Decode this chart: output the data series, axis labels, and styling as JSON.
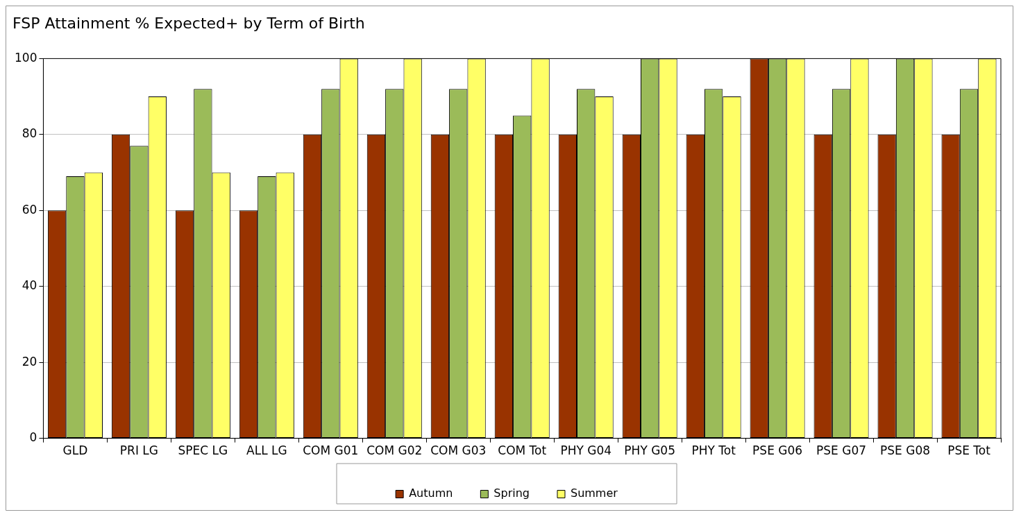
{
  "chart_data": {
    "type": "bar",
    "title": "FSP Attainment % Expected+ by Term of Birth",
    "categories": [
      "GLD",
      "PRI LG",
      "SPEC LG",
      "ALL LG",
      "COM G01",
      "COM G02",
      "COM G03",
      "COM Tot",
      "PHY G04",
      "PHY G05",
      "PHY Tot",
      "PSE G06",
      "PSE G07",
      "PSE G08",
      "PSE Tot"
    ],
    "series": [
      {
        "name": "Autumn",
        "color": "#993300",
        "values": [
          60,
          80,
          60,
          60,
          80,
          80,
          80,
          80,
          80,
          80,
          80,
          100,
          80,
          80,
          80
        ]
      },
      {
        "name": "Spring",
        "color": "#9bbb59",
        "values": [
          69,
          77,
          92,
          69,
          92,
          92,
          92,
          85,
          92,
          100,
          92,
          100,
          92,
          100,
          92
        ]
      },
      {
        "name": "Summer",
        "color": "#ffff66",
        "values": [
          70,
          90,
          70,
          70,
          100,
          100,
          100,
          100,
          90,
          100,
          90,
          100,
          100,
          100,
          100
        ]
      }
    ],
    "ylim": [
      0,
      100
    ],
    "yticks": [
      0,
      20,
      40,
      60,
      80,
      100
    ],
    "grid": "y",
    "legend": "bottom"
  }
}
